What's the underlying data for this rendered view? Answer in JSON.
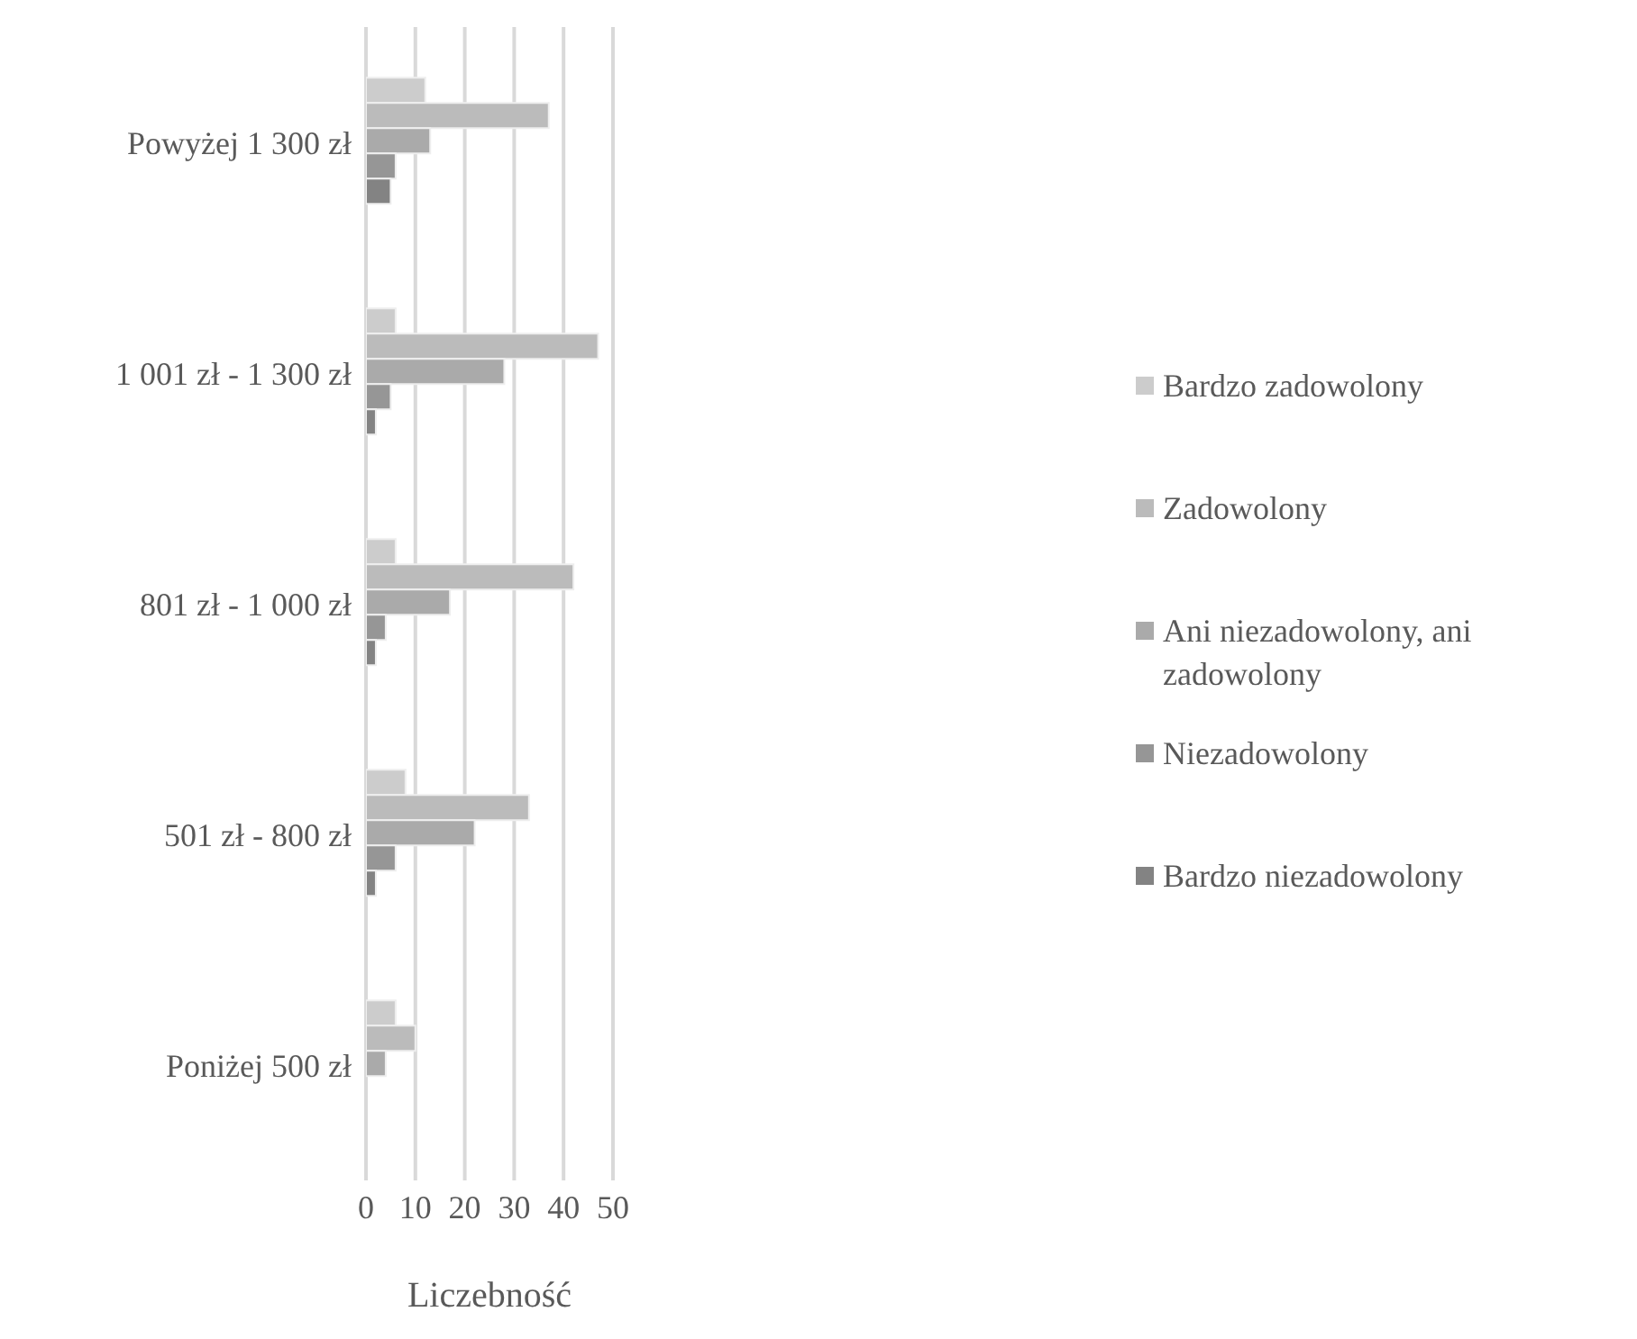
{
  "chart_data": {
    "type": "bar",
    "orientation": "horizontal",
    "xlabel": "Liczebność",
    "categories": [
      "Powyżej 1 300 zł",
      "1 001 zł - 1 300 zł",
      "801 zł - 1 000 zł",
      "501 zł - 800 zł",
      "Poniżej 500 zł"
    ],
    "series": [
      {
        "name": "Bardzo zadowolony",
        "color": "#cccccc",
        "values": [
          12,
          6,
          6,
          8,
          6
        ]
      },
      {
        "name": "Zadowolony",
        "color": "#bbbbbb",
        "values": [
          37,
          47,
          42,
          33,
          10
        ]
      },
      {
        "name": "Ani niezadowolony, ani zadowolony",
        "color": "#aaaaaa",
        "values": [
          13,
          28,
          17,
          22,
          4
        ]
      },
      {
        "name": "Niezadowolony",
        "color": "#969696",
        "values": [
          6,
          5,
          4,
          6,
          0
        ]
      },
      {
        "name": "Bardzo niezadowolony",
        "color": "#838383",
        "values": [
          5,
          2,
          2,
          2,
          0
        ]
      }
    ],
    "xlim": [
      0,
      50
    ],
    "xticks": [
      0,
      10,
      20,
      30,
      40,
      50
    ],
    "grid": "x",
    "legend": "right"
  }
}
